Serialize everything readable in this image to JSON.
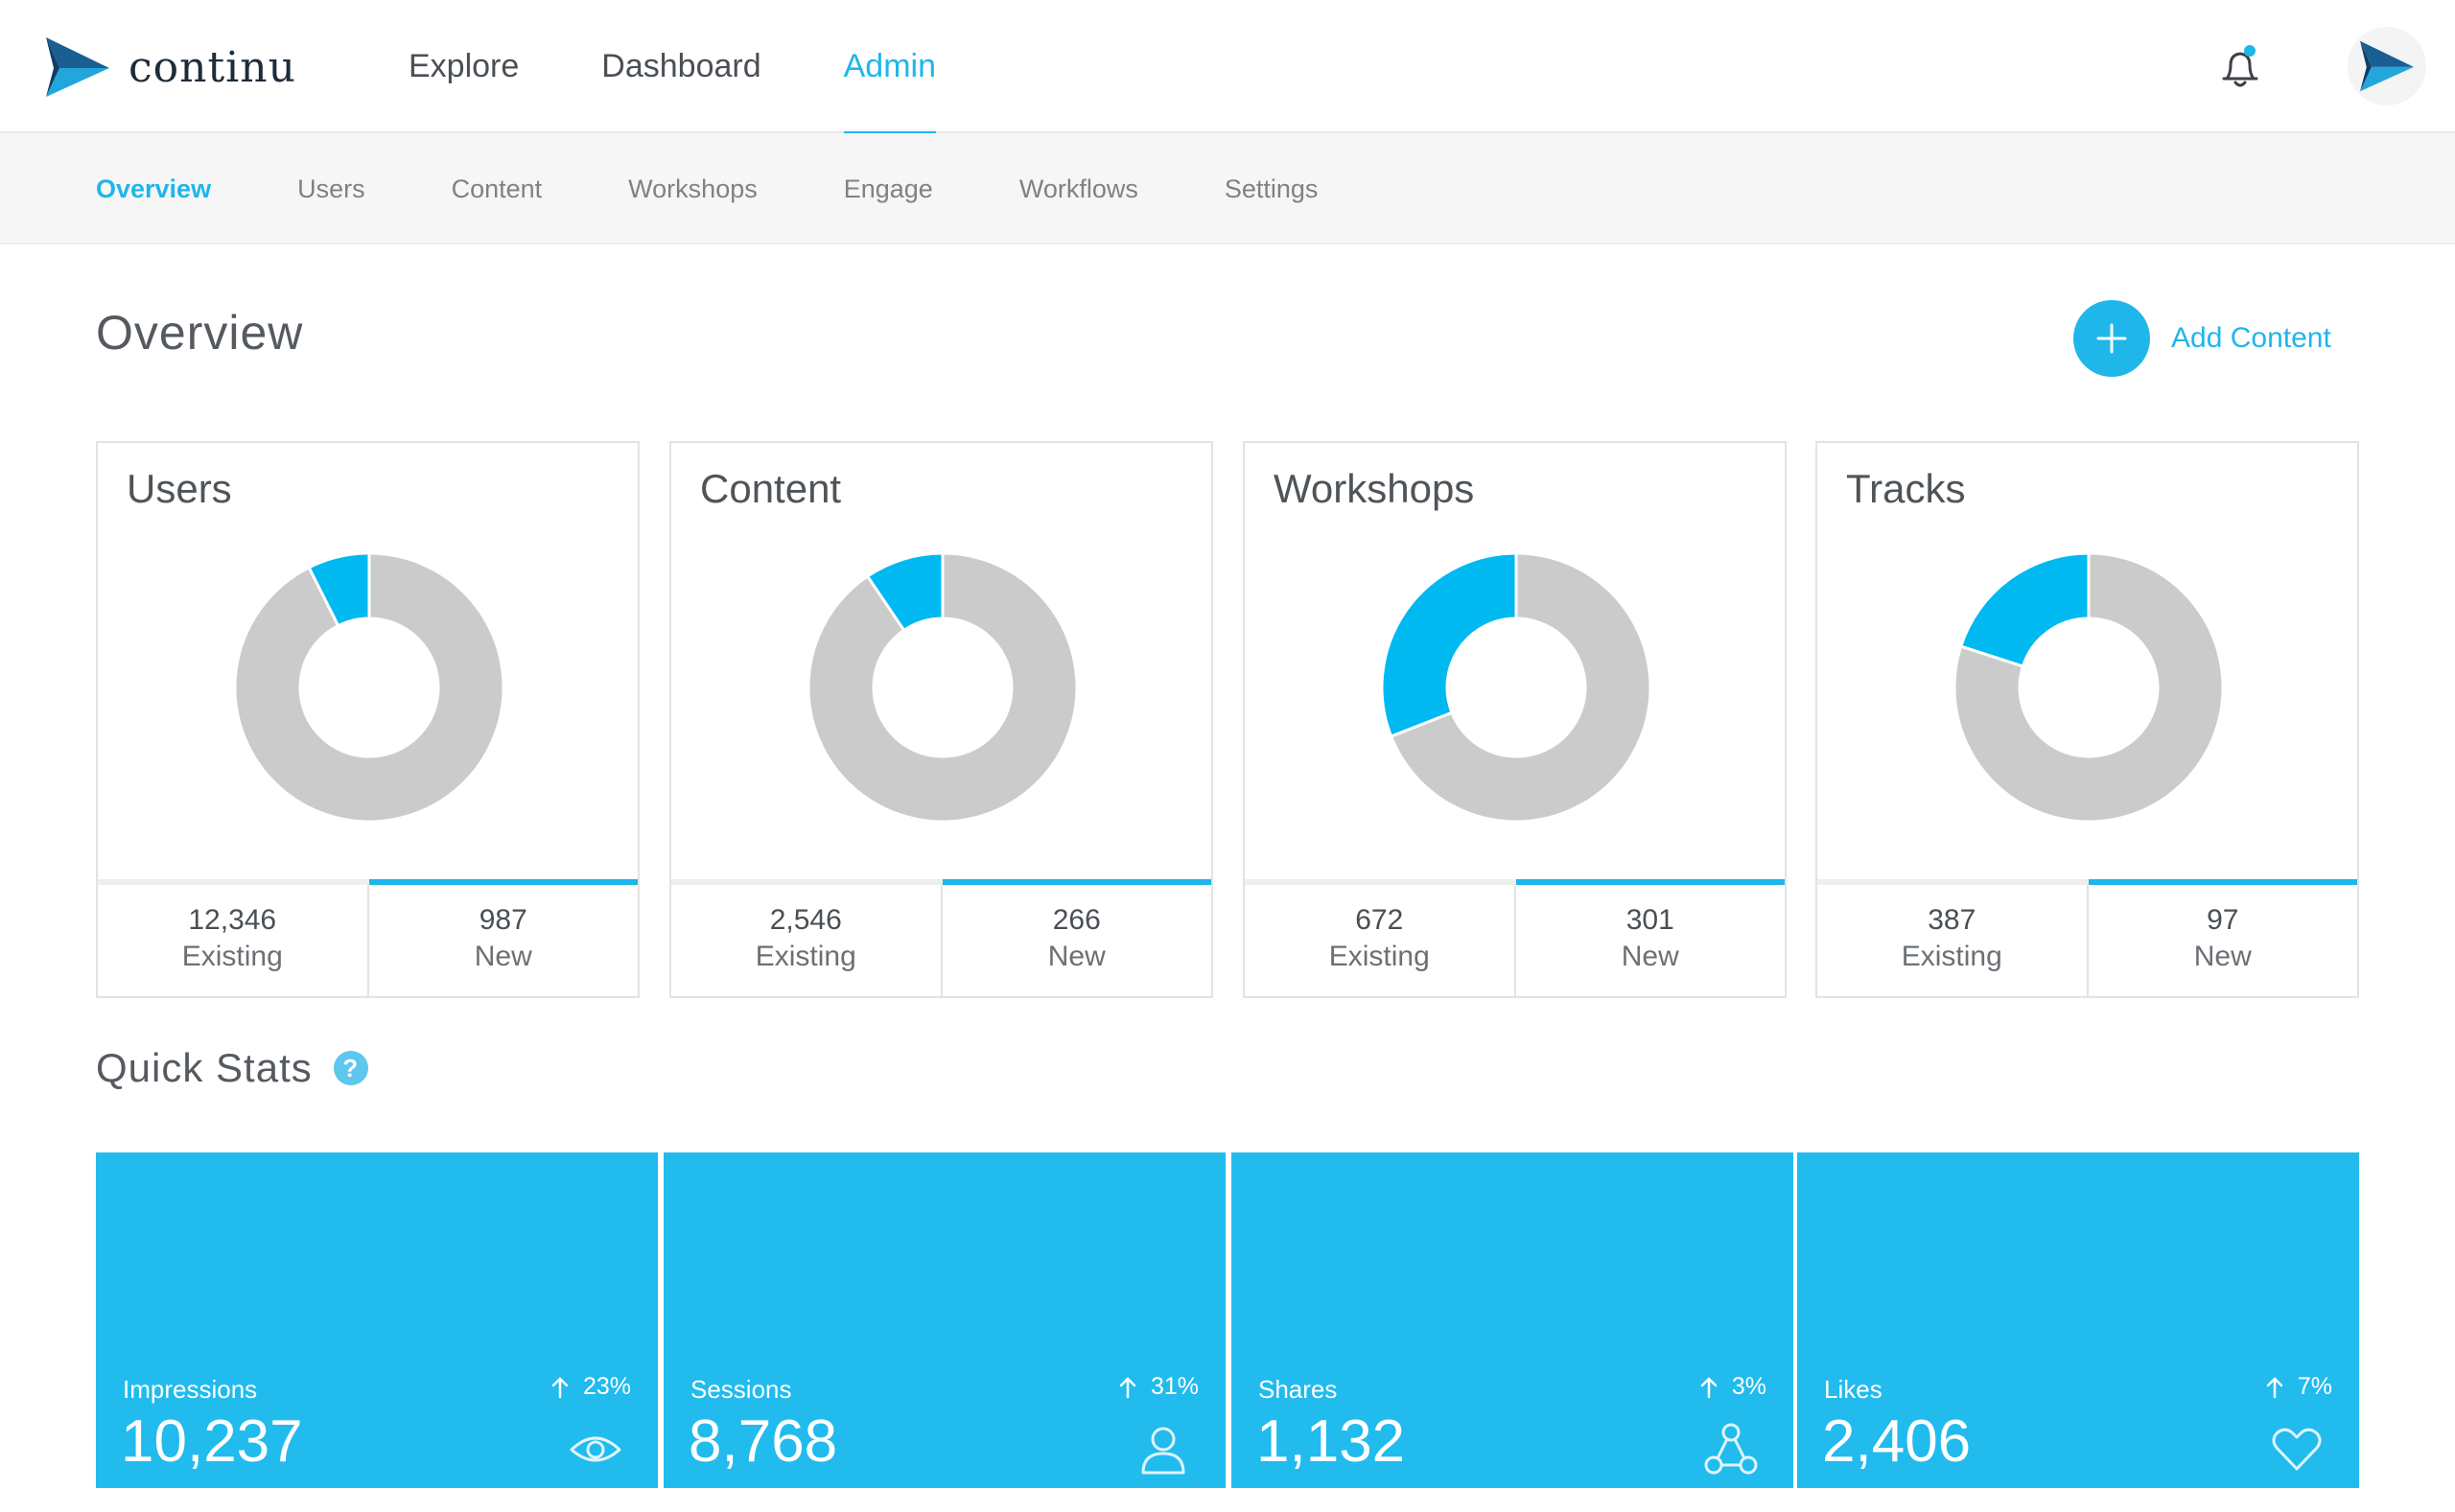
{
  "brand": {
    "name": "continu"
  },
  "mainnav": [
    {
      "label": "Explore",
      "active": false
    },
    {
      "label": "Dashboard",
      "active": false
    },
    {
      "label": "Admin",
      "active": true
    }
  ],
  "subnav": [
    {
      "label": "Overview",
      "active": true
    },
    {
      "label": "Users",
      "active": false
    },
    {
      "label": "Content",
      "active": false
    },
    {
      "label": "Workshops",
      "active": false
    },
    {
      "label": "Engage",
      "active": false
    },
    {
      "label": "Workflows",
      "active": false
    },
    {
      "label": "Settings",
      "active": false
    }
  ],
  "page": {
    "title": "Overview",
    "add_label": "Add Content"
  },
  "cards": [
    {
      "title": "Users",
      "existing": "12,346",
      "existing_label": "Existing",
      "new": "987",
      "new_label": "New"
    },
    {
      "title": "Content",
      "existing": "2,546",
      "existing_label": "Existing",
      "new": "266",
      "new_label": "New"
    },
    {
      "title": "Workshops",
      "existing": "672",
      "existing_label": "Existing",
      "new": "301",
      "new_label": "New"
    },
    {
      "title": "Tracks",
      "existing": "387",
      "existing_label": "Existing",
      "new": "97",
      "new_label": "New"
    }
  ],
  "quick_stats": {
    "title": "Quick Stats",
    "help": "?",
    "tiles": [
      {
        "label": "Impressions",
        "change": "23%",
        "value": "10,237",
        "icon": "eye-icon"
      },
      {
        "label": "Sessions",
        "change": "31%",
        "value": "8,768",
        "icon": "user-icon"
      },
      {
        "label": "Shares",
        "change": "3%",
        "value": "1,132",
        "icon": "share-nodes-icon"
      },
      {
        "label": "Likes",
        "change": "7%",
        "value": "2,406",
        "icon": "heart-icon"
      }
    ]
  },
  "colors": {
    "accent": "#1fb6ea",
    "tile": "#21bbee",
    "donut_base": "#cbcbcb",
    "donut_new": "#00b9f1"
  },
  "chart_data": [
    {
      "type": "pie",
      "title": "Users",
      "categories": [
        "Existing",
        "New"
      ],
      "values": [
        12346,
        987
      ]
    },
    {
      "type": "pie",
      "title": "Content",
      "categories": [
        "Existing",
        "New"
      ],
      "values": [
        2546,
        266
      ]
    },
    {
      "type": "pie",
      "title": "Workshops",
      "categories": [
        "Existing",
        "New"
      ],
      "values": [
        672,
        301
      ]
    },
    {
      "type": "pie",
      "title": "Tracks",
      "categories": [
        "Existing",
        "New"
      ],
      "values": [
        387,
        97
      ]
    }
  ]
}
